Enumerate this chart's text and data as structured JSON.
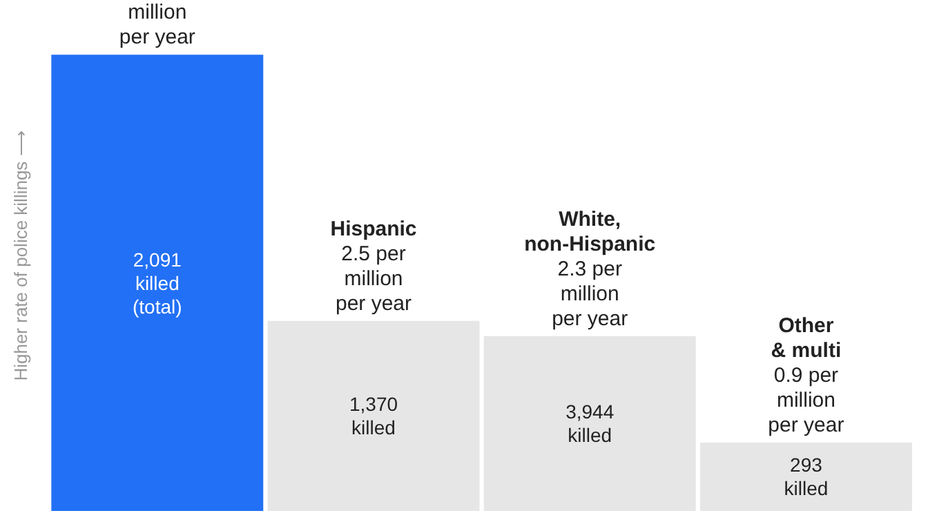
{
  "chart_data": {
    "type": "bar",
    "ylabel": "Higher rate of police killings ⟶",
    "categories": [
      null,
      "Hispanic",
      "White, non-Hispanic",
      "Other & multi"
    ],
    "values": [
      6.0,
      2.5,
      2.3,
      0.9
    ],
    "colors": [
      "#2270f5",
      "#e6e6e6",
      "#e6e6e6",
      "#e6e6e6"
    ],
    "value_labels": [
      "million per year",
      "2.5 per million per year",
      "2.3 per million per year",
      "0.9 per million per year"
    ],
    "annotations": [
      "2,091 killed (total)",
      "1,370 killed",
      "3,944 killed",
      "293 killed"
    ],
    "tick_labels": false,
    "grid": false,
    "legend": false
  }
}
